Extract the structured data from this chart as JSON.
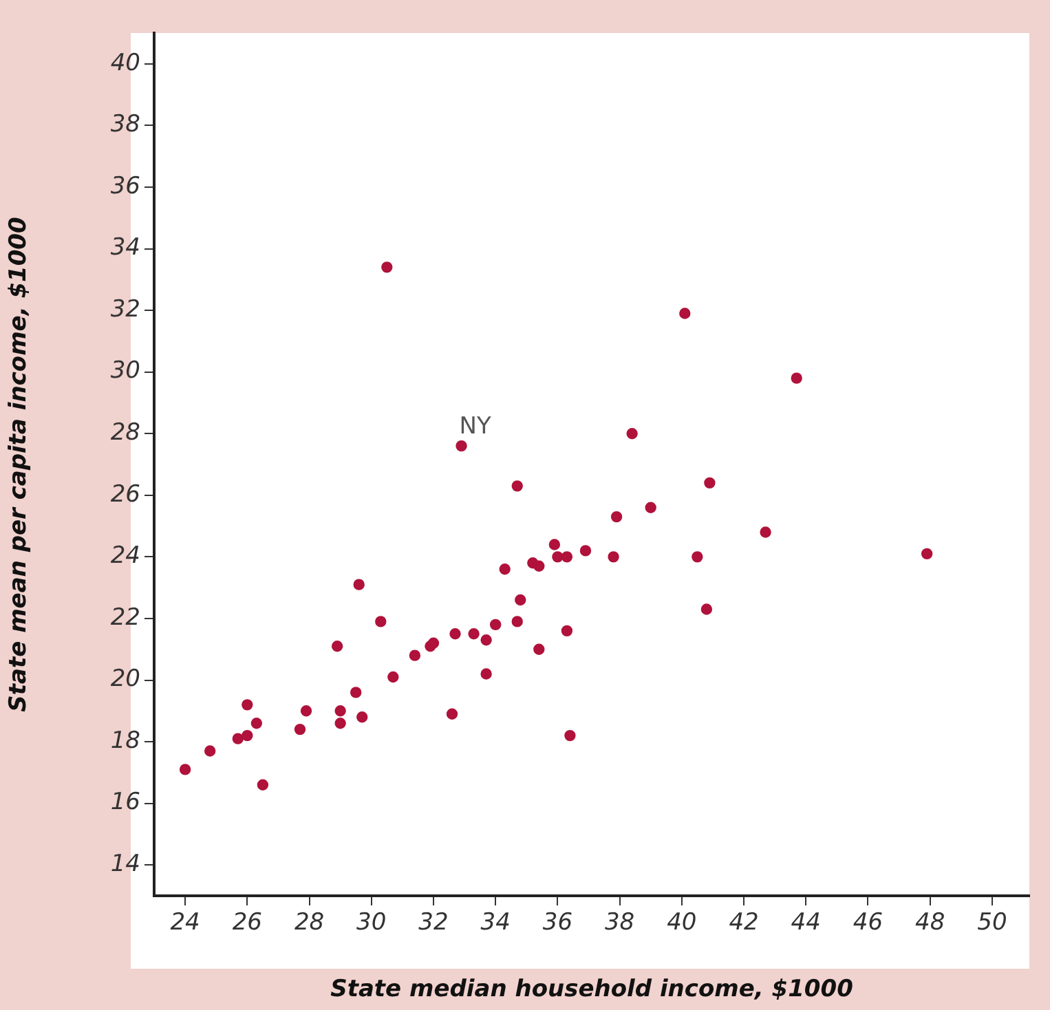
{
  "chart_data": {
    "type": "scatter",
    "xlabel": "State median household income, $1000",
    "ylabel": "State mean per capita income, $1000",
    "color": "#b0123b",
    "marker": "circle",
    "grid": false,
    "legend": false,
    "xlim": [
      23,
      51.2
    ],
    "ylim": [
      13,
      41
    ],
    "xticks": [
      24,
      26,
      28,
      30,
      32,
      34,
      36,
      38,
      40,
      42,
      44,
      46,
      48,
      50
    ],
    "yticks": [
      14,
      16,
      18,
      20,
      22,
      24,
      26,
      28,
      30,
      32,
      34,
      36,
      38,
      40
    ],
    "x": [
      24.0,
      24.8,
      25.7,
      26.0,
      26.0,
      26.3,
      26.5,
      27.7,
      27.9,
      28.9,
      29.0,
      29.0,
      29.5,
      29.6,
      29.7,
      30.3,
      30.5,
      30.7,
      31.4,
      31.9,
      32.0,
      32.6,
      32.7,
      32.9,
      33.3,
      33.7,
      33.7,
      34.0,
      34.3,
      34.7,
      34.8,
      34.7,
      35.2,
      35.4,
      35.4,
      35.9,
      36.0,
      36.3,
      36.3,
      36.4,
      36.9,
      37.8,
      37.9,
      38.4,
      39.0,
      40.1,
      40.5,
      40.8,
      40.9,
      42.7,
      43.7,
      47.9
    ],
    "values": [
      17.1,
      17.7,
      18.1,
      18.2,
      19.2,
      18.6,
      16.6,
      18.4,
      19.0,
      21.1,
      19.0,
      18.6,
      19.6,
      23.1,
      18.8,
      21.9,
      33.4,
      20.1,
      20.8,
      21.1,
      21.2,
      18.9,
      21.5,
      27.6,
      21.5,
      21.3,
      20.2,
      21.8,
      23.6,
      21.9,
      22.6,
      26.3,
      23.8,
      21.0,
      23.7,
      24.4,
      24.0,
      24.0,
      21.6,
      18.2,
      24.2,
      24.0,
      25.3,
      28.0,
      25.6,
      31.9,
      24.0,
      22.3,
      26.4,
      24.8,
      29.8,
      24.1
    ],
    "annotations": [
      {
        "text": "NY",
        "x": 32.9,
        "y": 27.6
      }
    ]
  }
}
